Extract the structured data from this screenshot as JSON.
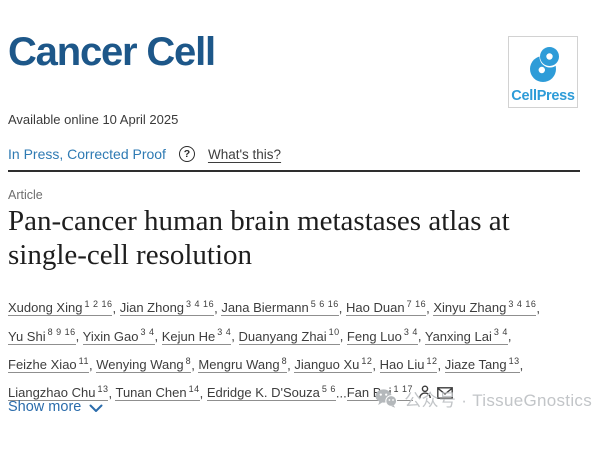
{
  "masthead": {
    "journal_title": "Cancer Cell",
    "cellpress": {
      "label": "CellPress"
    }
  },
  "meta": {
    "available_online": "Available online 10 April 2025",
    "status_link": "In Press, Corrected Proof",
    "help_question": "?",
    "help_link": "What's this?"
  },
  "article": {
    "kicker": "Article",
    "title_line1": "Pan-cancer human brain metastases atlas at",
    "title_line2": "single-cell resolution"
  },
  "authors": {
    "lines": [
      [
        {
          "name": "Xudong Xing",
          "sup": "1 2 16",
          "sep": ", "
        },
        {
          "name": "Jian Zhong",
          "sup": "3 4 16",
          "sep": ", "
        },
        {
          "name": "Jana Biermann",
          "sup": "5 6 16",
          "sep": ", "
        },
        {
          "name": "Hao Duan",
          "sup": "7 16",
          "sep": ", "
        },
        {
          "name": "Xinyu Zhang",
          "sup": "3 4 16",
          "sep": ","
        }
      ],
      [
        {
          "name": "Yu Shi",
          "sup": "8 9 16",
          "sep": ", "
        },
        {
          "name": "Yixin Gao",
          "sup": "3 4",
          "sep": ", "
        },
        {
          "name": "Kejun He",
          "sup": "3 4",
          "sep": ", "
        },
        {
          "name": "Duanyang Zhai",
          "sup": "10",
          "sep": ", "
        },
        {
          "name": "Feng Luo",
          "sup": "3 4",
          "sep": ", "
        },
        {
          "name": "Yanxing Lai",
          "sup": "3 4",
          "sep": ","
        }
      ],
      [
        {
          "name": "Feizhe Xiao",
          "sup": "11",
          "sep": ", "
        },
        {
          "name": "Wenying Wang",
          "sup": "8",
          "sep": ", "
        },
        {
          "name": "Mengru Wang",
          "sup": "8",
          "sep": ", "
        },
        {
          "name": "Jianguo Xu",
          "sup": "12",
          "sep": ", "
        },
        {
          "name": "Hao Liu",
          "sup": "12",
          "sep": ", "
        },
        {
          "name": "Jiaze Tang",
          "sup": "13",
          "sep": ","
        }
      ],
      [
        {
          "name": "Liangzhao Chu",
          "sup": "13",
          "sep": ", "
        },
        {
          "name": "Tunan Chen",
          "sup": "14",
          "sep": ", "
        },
        {
          "name": "Edridge K. D'Souza",
          "sup": "5 6",
          "sep": "..."
        },
        {
          "name": "Fan Bai",
          "sup": "1 17",
          "sep": ""
        }
      ]
    ]
  },
  "actions": {
    "show_more": "Show more"
  },
  "watermark": {
    "text": "公众号 · TissueGnostics"
  },
  "colors": {
    "journal_blue": "#1d5789",
    "cellpress_blue": "#2e9cd8",
    "status_blue": "#2e7ab3",
    "link_blue": "#2b6cab",
    "text_dark": "#3a3a3a",
    "watermark_gray": "#c2c5c8"
  }
}
